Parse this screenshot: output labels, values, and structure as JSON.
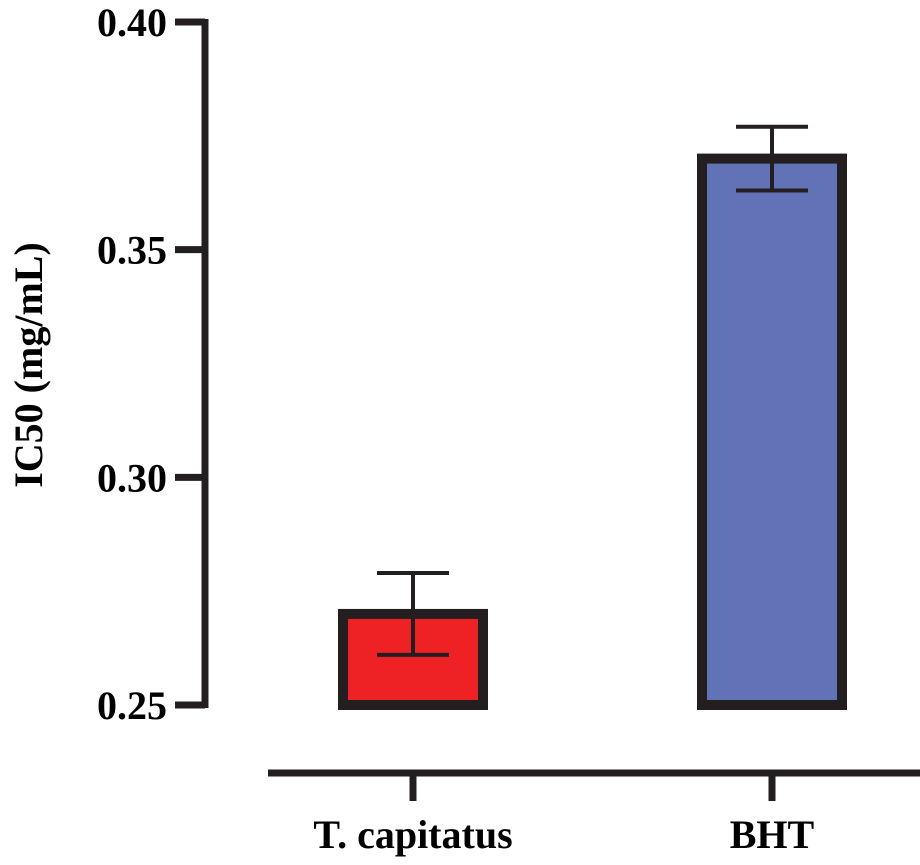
{
  "chart_data": {
    "type": "bar",
    "title": "",
    "xlabel": "",
    "ylabel": "IC50 (mg/mL)",
    "ylim": [
      0.25,
      0.4
    ],
    "yticks": [
      0.25,
      0.3,
      0.35,
      0.4
    ],
    "ytick_labels": [
      "0.25",
      "0.30",
      "0.35",
      "0.40"
    ],
    "categories": [
      "T. capitatus",
      "BHT"
    ],
    "values": [
      0.27,
      0.37
    ],
    "error_upper": [
      0.279,
      0.377
    ],
    "error_lower": [
      0.261,
      0.363
    ],
    "colors": [
      "#ee2124",
      "#6272b6"
    ],
    "grid": false,
    "legend": "none"
  }
}
